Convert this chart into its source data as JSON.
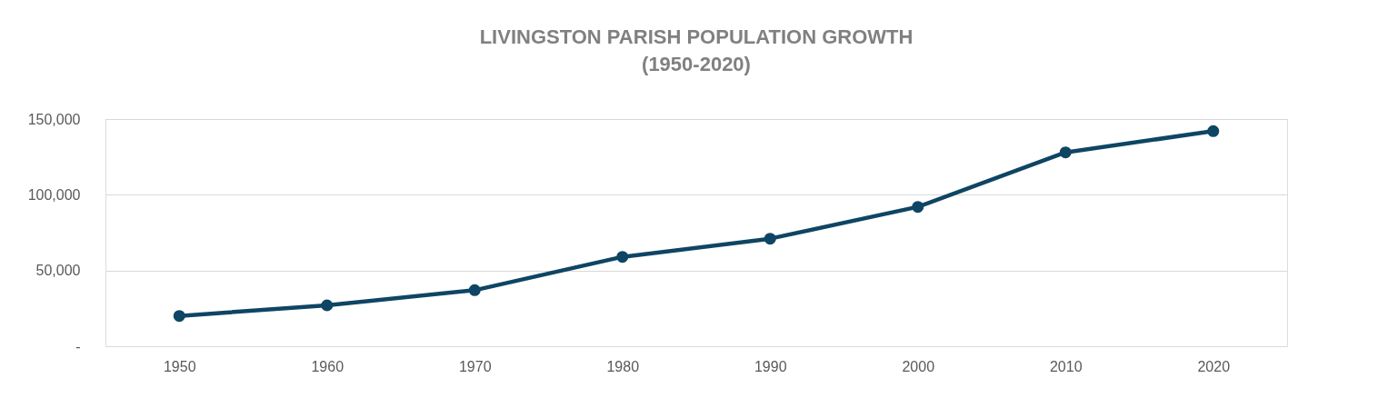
{
  "chart_data": {
    "type": "line",
    "title": "LIVINGSTON PARISH POPULATION GROWTH",
    "subtitle": "(1950-2020)",
    "categories": [
      "1950",
      "1960",
      "1970",
      "1980",
      "1990",
      "2000",
      "2010",
      "2020"
    ],
    "series": [
      {
        "color": "#0f4564",
        "values": [
          20000,
          27000,
          37000,
          59000,
          71000,
          92000,
          128000,
          142000
        ]
      }
    ],
    "ylim": [
      0,
      150000
    ],
    "yticks": [
      {
        "value": 0,
        "label": "-"
      },
      {
        "value": 50000,
        "label": "50,000"
      },
      {
        "value": 100000,
        "label": "100,000"
      },
      {
        "value": 150000,
        "label": "150,000"
      }
    ],
    "grid": "y",
    "marker": "circle",
    "line_style": "solid"
  }
}
